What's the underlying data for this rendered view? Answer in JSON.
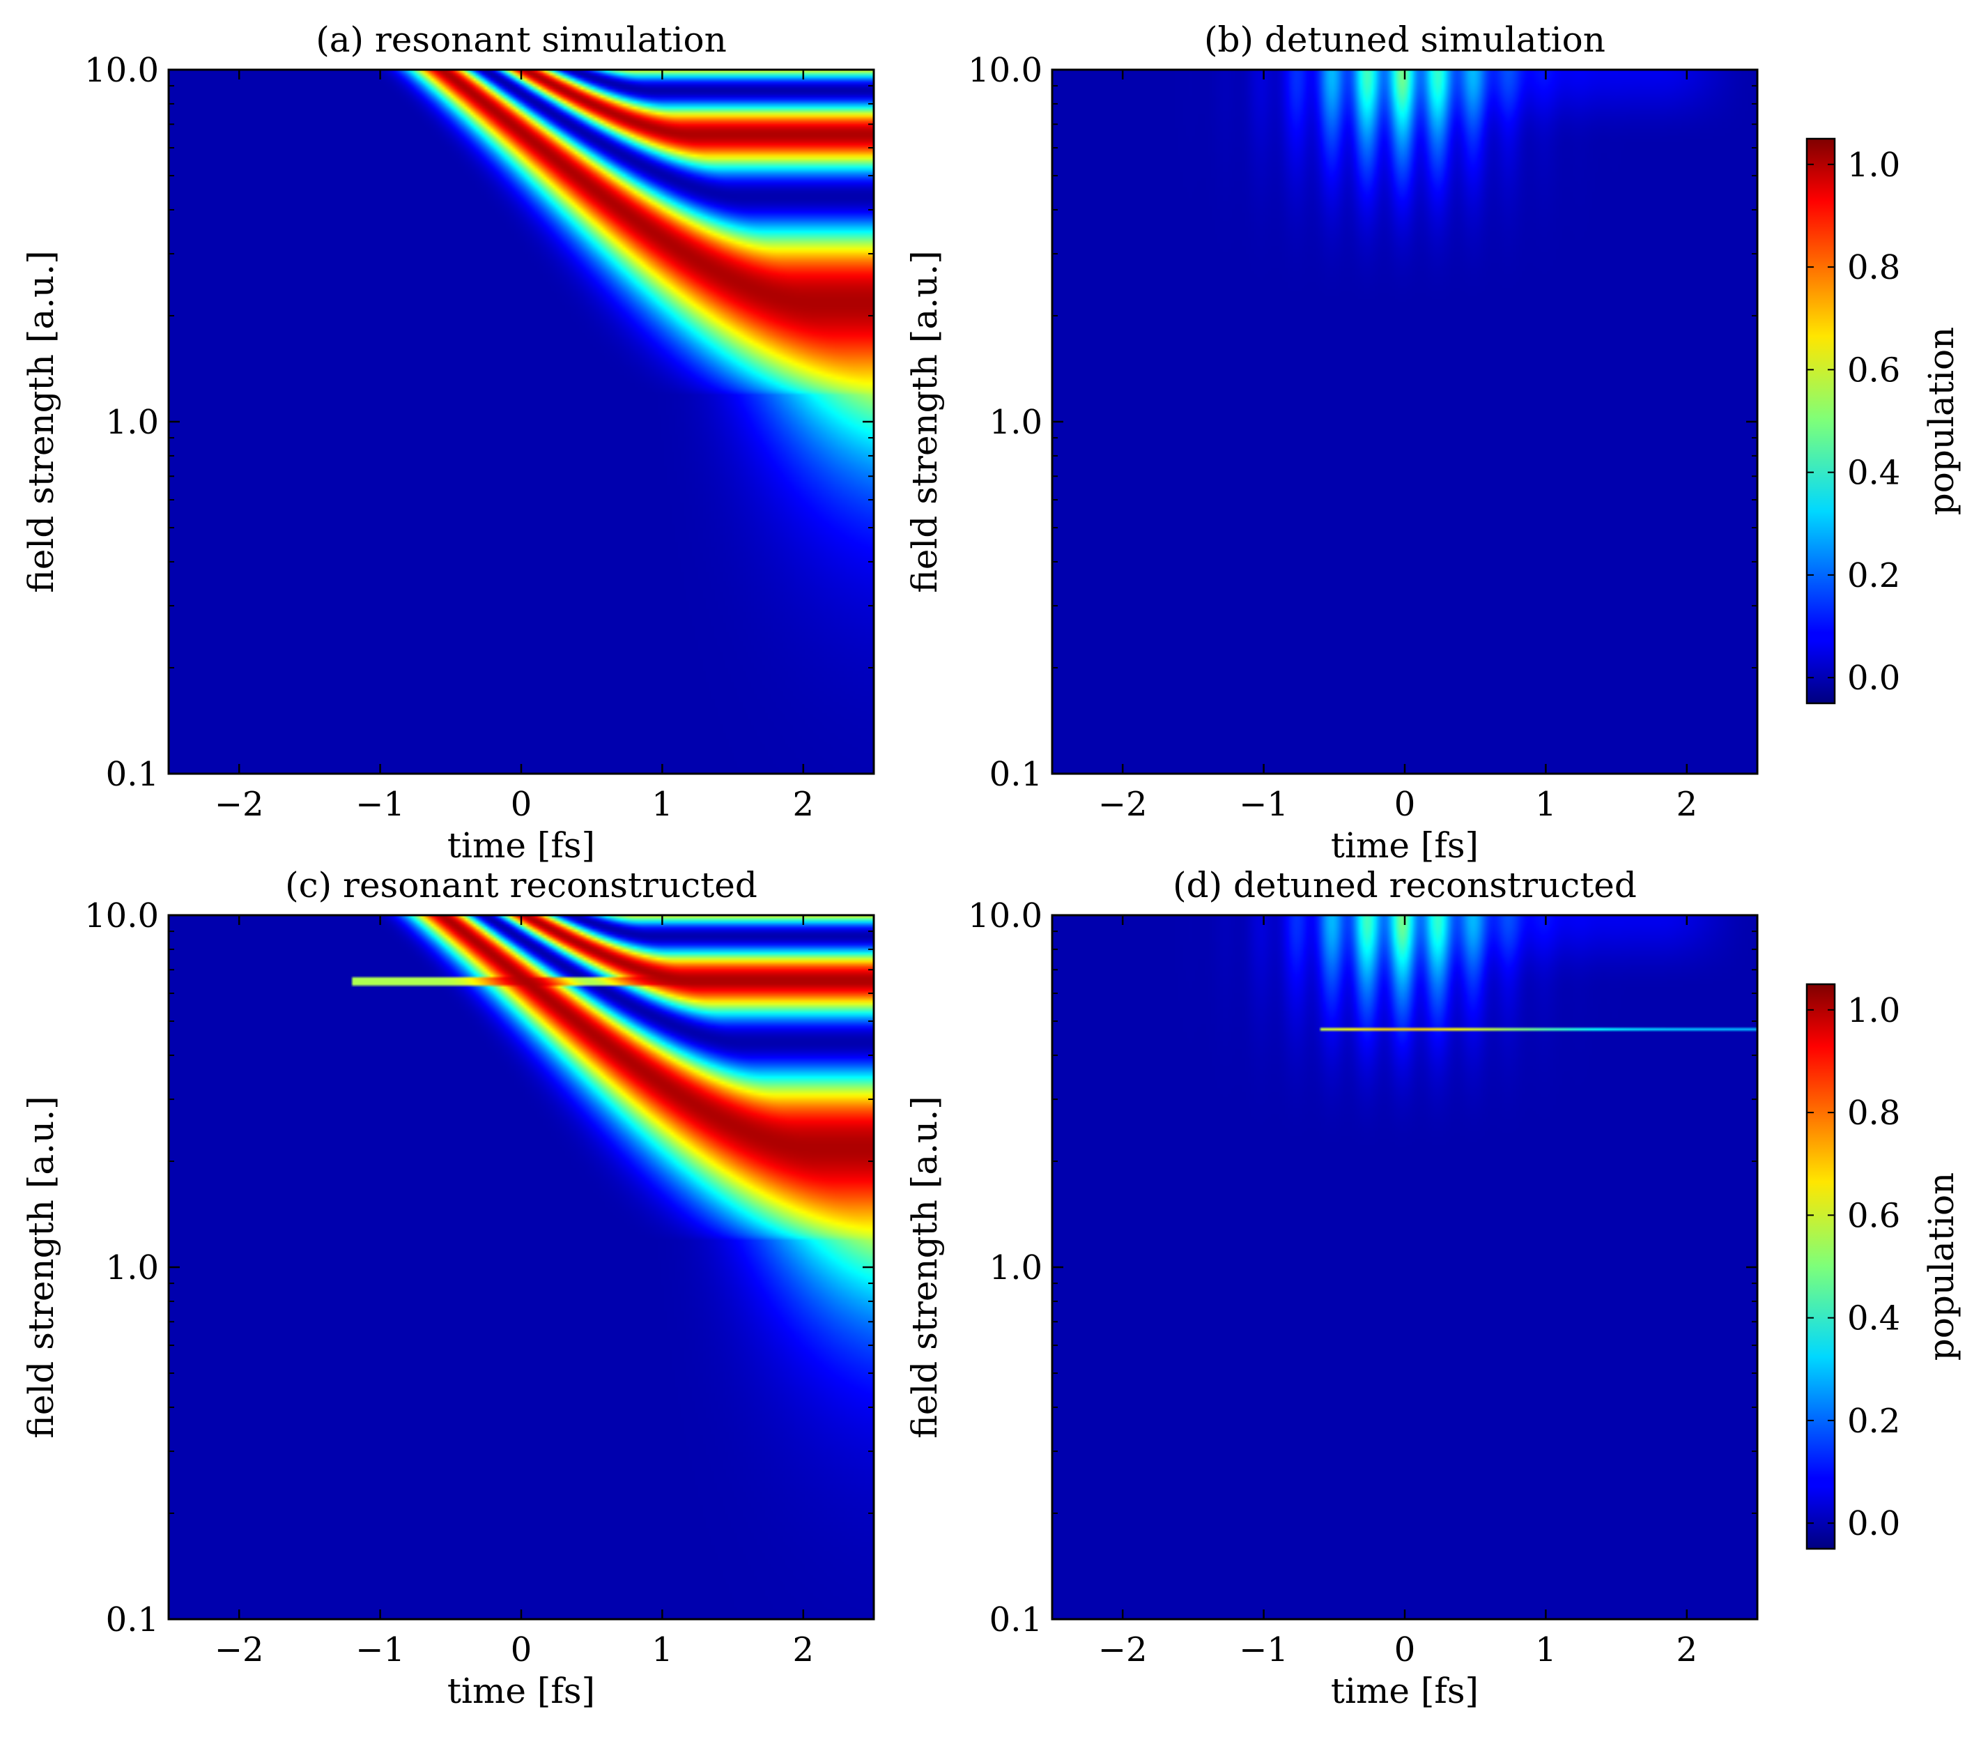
{
  "colors": {
    "colormap": "jet",
    "background": "#ffffff",
    "axes_frame": "#000000"
  },
  "chart_data": [
    {
      "type": "heatmap",
      "panel": "a",
      "title": "(a) resonant simulation",
      "xlabel": "time [fs]",
      "ylabel": "field strength [a.u.]",
      "xlim": [
        -2.5,
        2.5
      ],
      "ylim": [
        0.1,
        10.0
      ],
      "yscale": "log",
      "xticks": [
        -2,
        -1,
        0,
        1,
        2
      ],
      "xtick_labels": [
        "−2",
        "−1",
        "0",
        "1",
        "2"
      ],
      "yticks": [
        0.1,
        1.0,
        10.0
      ],
      "ytick_labels": [
        "0.1",
        "1.0",
        "10.0"
      ],
      "zlim": [
        -0.05,
        1.05
      ],
      "model": "resonant",
      "features": "population rises from ~0 at weak fields to ~1 (red band) around field 2.5–5 a.u. for t > 0 fs; onset moves to earlier times at stronger field; fringes above 5 a.u."
    },
    {
      "type": "heatmap",
      "panel": "b",
      "title": "(b) detuned simulation",
      "xlabel": "time [fs]",
      "ylabel": "field strength [a.u.]",
      "xlim": [
        -2.5,
        2.5
      ],
      "ylim": [
        0.1,
        10.0
      ],
      "yscale": "log",
      "xticks": [
        -2,
        -1,
        0,
        1,
        2
      ],
      "xtick_labels": [
        "−2",
        "−1",
        "0",
        "1",
        "2"
      ],
      "yticks": [
        0.1,
        1.0,
        10.0
      ],
      "ytick_labels": [
        "0.1",
        "1.0",
        "10.0"
      ],
      "zlim": [
        -0.05,
        1.05
      ],
      "model": "detuned",
      "features": "population near 0 everywhere except transient streaks (~0.3–0.4) between t = -0.7 and 0.6 fs above field ~2.5 a.u."
    },
    {
      "type": "heatmap",
      "panel": "c",
      "title": "(c) resonant reconstructed",
      "xlabel": "time [fs]",
      "ylabel": "field strength [a.u.]",
      "xlim": [
        -2.5,
        2.5
      ],
      "ylim": [
        0.1,
        10.0
      ],
      "yscale": "log",
      "xticks": [
        -2,
        -1,
        0,
        1,
        2
      ],
      "xtick_labels": [
        "−2",
        "−1",
        "0",
        "1",
        "2"
      ],
      "yticks": [
        0.1,
        1.0,
        10.0
      ],
      "ytick_labels": [
        "0.1",
        "1.0",
        "10.0"
      ],
      "zlim": [
        -0.05,
        1.05
      ],
      "model": "resonant",
      "artifact_line_field": 6.5,
      "features": "reconstruction of (a) with a horizontal artifact near field 6.5 a.u."
    },
    {
      "type": "heatmap",
      "panel": "d",
      "title": "(d) detuned reconstructed",
      "xlabel": "time [fs]",
      "ylabel": "field strength [a.u.]",
      "xlim": [
        -2.5,
        2.5
      ],
      "ylim": [
        0.1,
        10.0
      ],
      "yscale": "log",
      "xticks": [
        -2,
        -1,
        0,
        1,
        2
      ],
      "xtick_labels": [
        "−2",
        "−1",
        "0",
        "1",
        "2"
      ],
      "yticks": [
        0.1,
        1.0,
        10.0
      ],
      "ytick_labels": [
        "0.1",
        "1.0",
        "10.0"
      ],
      "zlim": [
        -0.05,
        1.05
      ],
      "model": "detuned",
      "artifact_line_field": 4.7,
      "features": "reconstruction of (b) with a thin horizontal artifact line near field 4.7 a.u."
    }
  ],
  "colorbars": [
    {
      "label": "population",
      "ticks": [
        0.0,
        0.2,
        0.4,
        0.6,
        0.8,
        1.0
      ],
      "tick_labels": [
        "0.0",
        "0.2",
        "0.4",
        "0.6",
        "0.8",
        "1.0"
      ],
      "range": [
        -0.05,
        1.05
      ]
    },
    {
      "label": "population",
      "ticks": [
        0.0,
        0.2,
        0.4,
        0.6,
        0.8,
        1.0
      ],
      "tick_labels": [
        "0.0",
        "0.2",
        "0.4",
        "0.6",
        "0.8",
        "1.0"
      ],
      "range": [
        -0.05,
        1.05
      ]
    }
  ]
}
